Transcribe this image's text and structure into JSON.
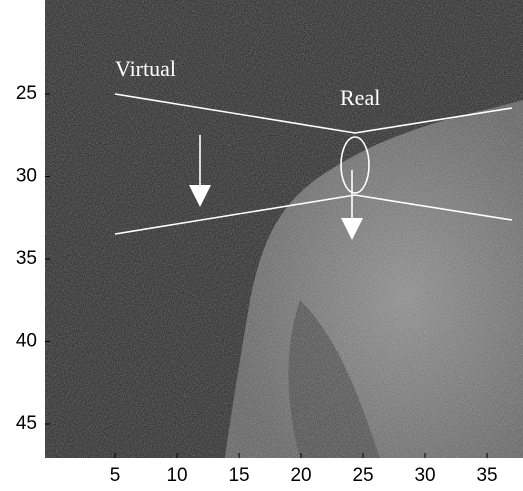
{
  "chart_data": {
    "type": "image",
    "annotations": [
      "Virtual",
      "Real"
    ],
    "xlim": [
      -0.65,
      37.9
    ],
    "ylim": [
      19.3,
      47.06
    ],
    "xticks": [
      5,
      10,
      15,
      20,
      25,
      30,
      35
    ],
    "yticks": [
      25,
      30,
      35,
      40,
      45
    ]
  }
}
